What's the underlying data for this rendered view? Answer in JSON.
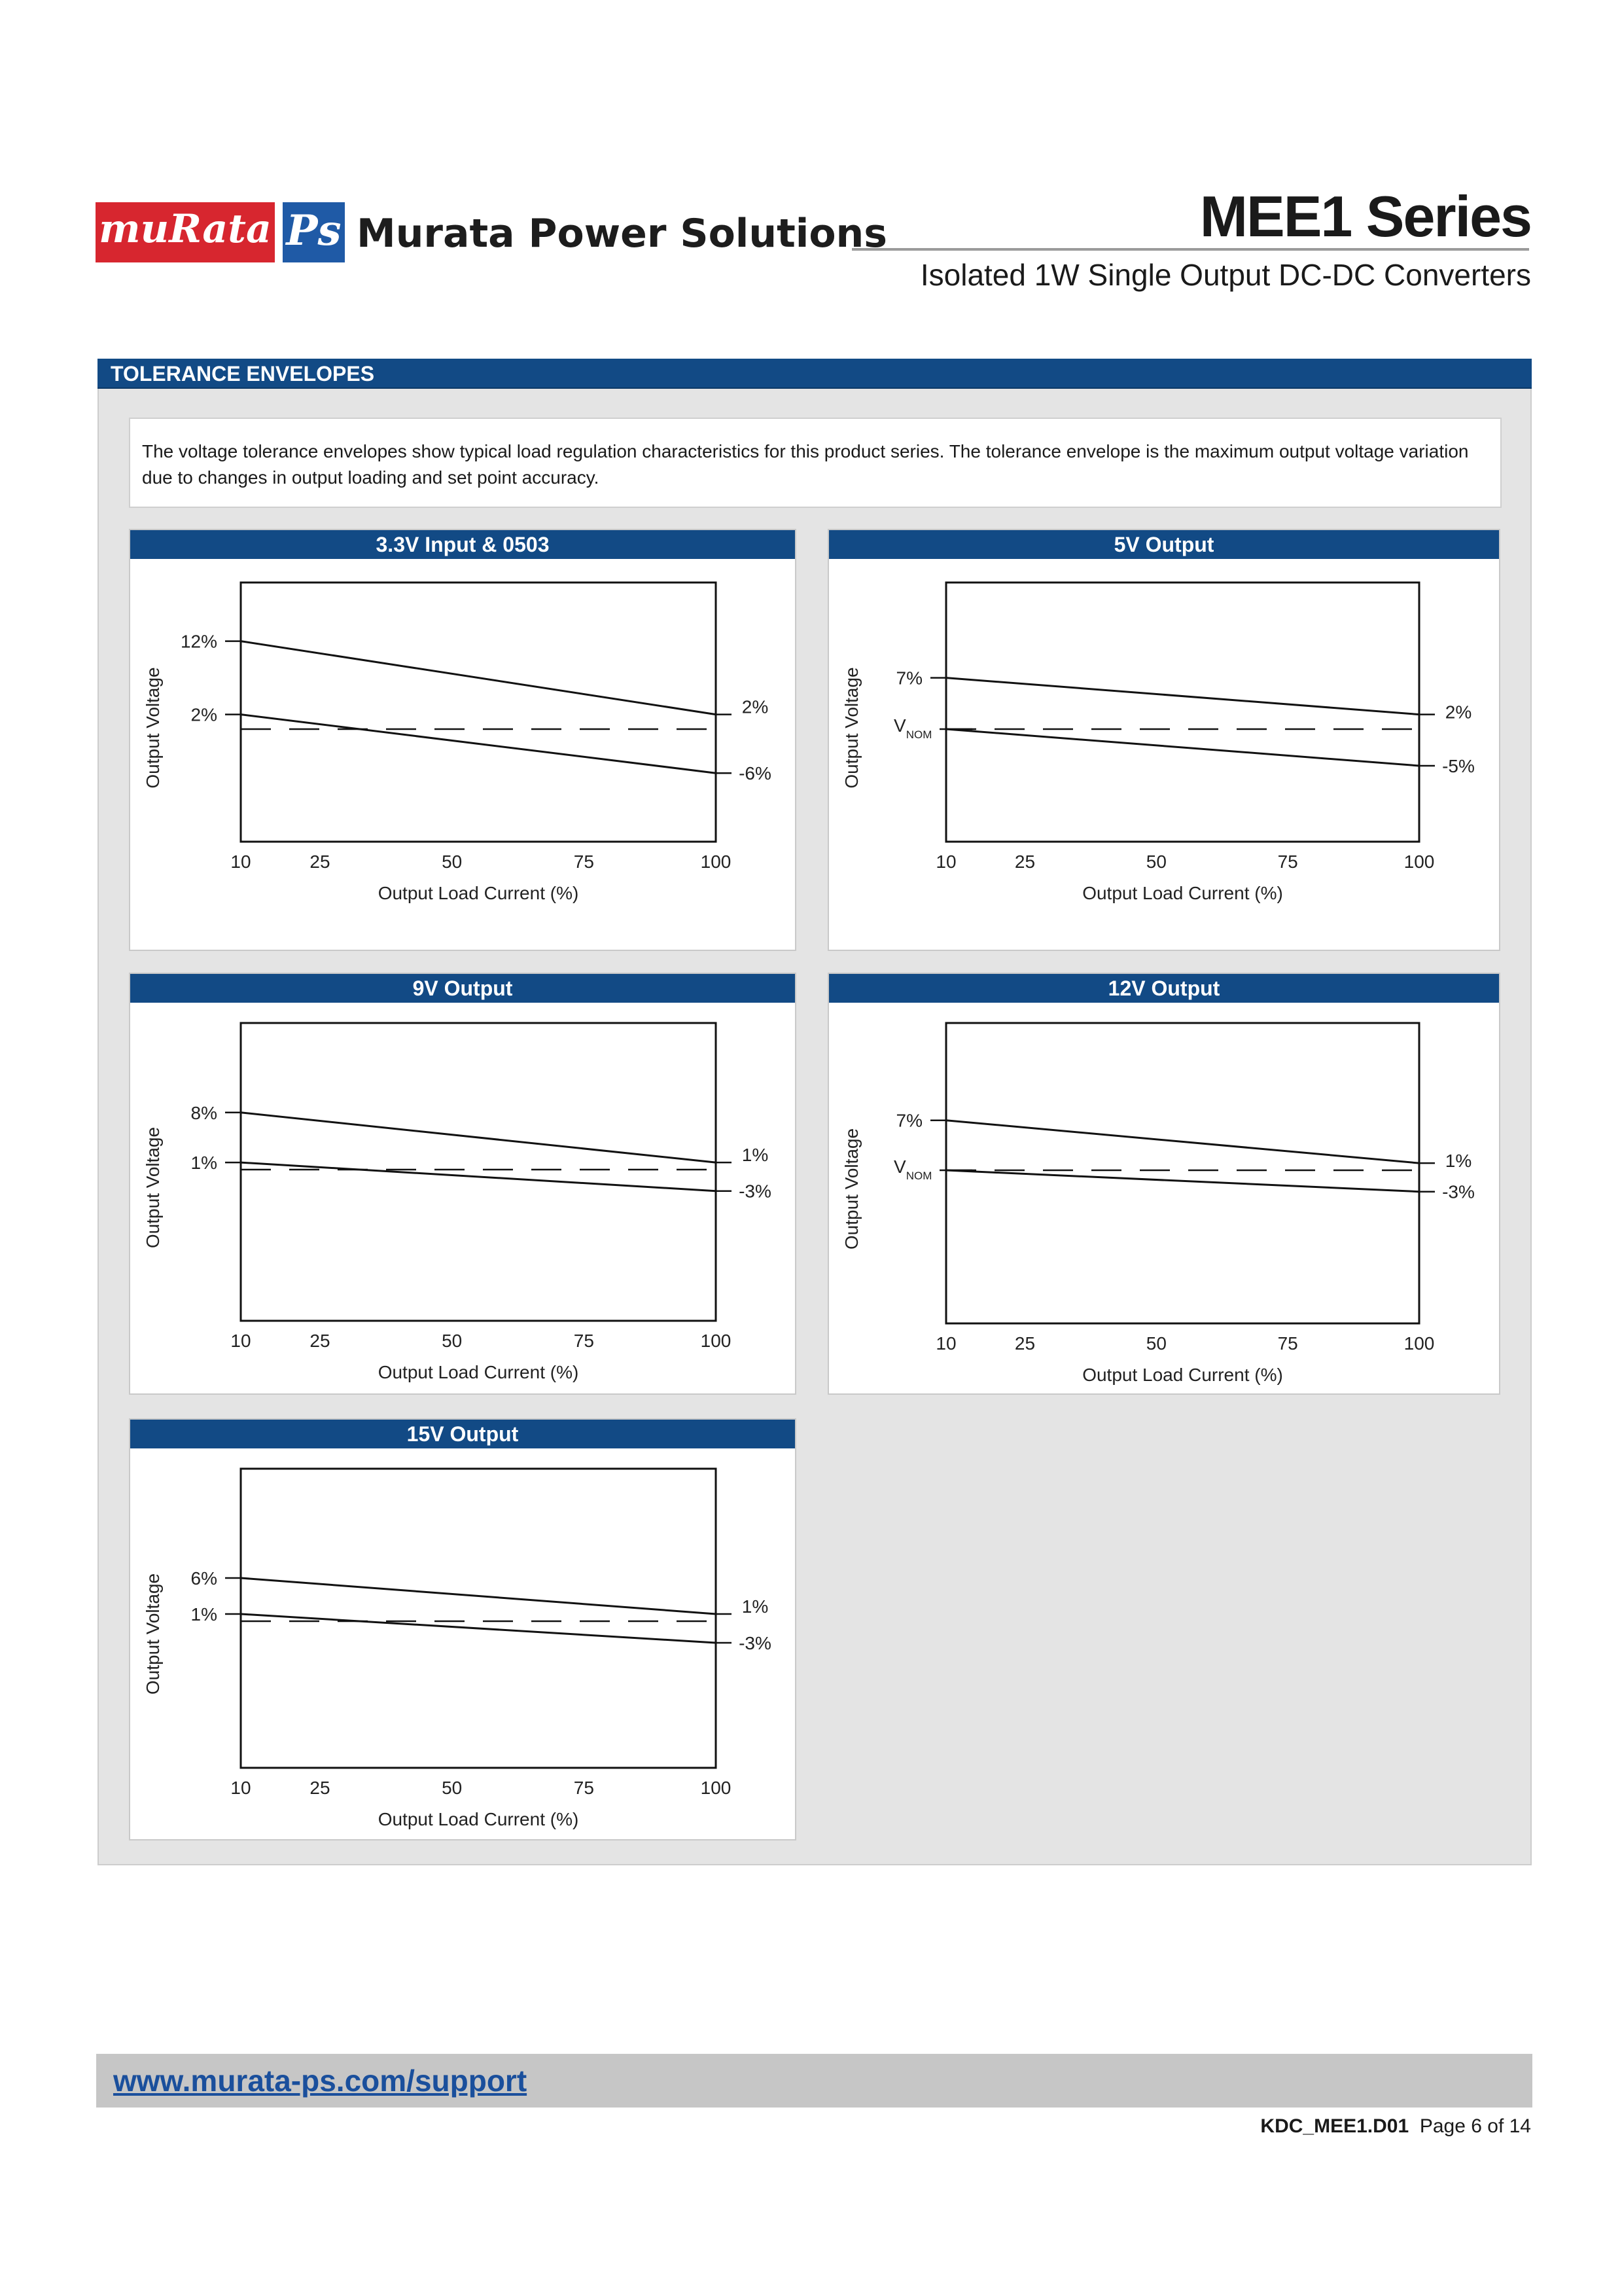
{
  "header": {
    "logo_text": "muRata",
    "ps_mark": "Ps",
    "brand_name": "Murata Power Solutions",
    "series_title": "MEE1 Series",
    "series_subtitle": "Isolated 1W Single Output DC-DC Converters"
  },
  "section": {
    "title": "TOLERANCE ENVELOPES",
    "intro": "The voltage tolerance envelopes show typical load regulation characteristics for this product series. The tolerance envelope is the maximum output voltage variation due to changes in output loading and set point accuracy."
  },
  "chart_data": [
    {
      "type": "line",
      "title": "3.3V Input & 0503",
      "xlabel": "Output Load Current (%)",
      "ylabel": "Output Voltage",
      "x_ticks": [
        "10",
        "25",
        "50",
        "75",
        "100"
      ],
      "x": [
        10,
        100
      ],
      "left_labels": [
        "12%",
        "2%"
      ],
      "right_labels": [
        "2%",
        "-6%"
      ],
      "nominal_label": "",
      "series": [
        {
          "name": "upper",
          "values": [
            12,
            2
          ]
        },
        {
          "name": "lower",
          "values": [
            2,
            -6
          ]
        },
        {
          "name": "nominal",
          "style": "dashed",
          "values": [
            0,
            0
          ]
        }
      ]
    },
    {
      "type": "line",
      "title": "5V Output",
      "xlabel": "Output Load Current (%)",
      "ylabel": "Output Voltage",
      "x_ticks": [
        "10",
        "25",
        "50",
        "75",
        "100"
      ],
      "x": [
        10,
        100
      ],
      "left_labels": [
        "7%"
      ],
      "right_labels": [
        "2%",
        "-5%"
      ],
      "nominal_label": {
        "main": "V",
        "sub": "NOM"
      },
      "series": [
        {
          "name": "upper",
          "values": [
            7,
            2
          ]
        },
        {
          "name": "lower",
          "values": [
            0,
            -5
          ]
        },
        {
          "name": "nominal",
          "style": "dashed",
          "values": [
            0,
            0
          ]
        }
      ]
    },
    {
      "type": "line",
      "title": "9V Output",
      "xlabel": "Output Load Current (%)",
      "ylabel": "Output Voltage",
      "x_ticks": [
        "10",
        "25",
        "50",
        "75",
        "100"
      ],
      "x": [
        10,
        100
      ],
      "left_labels": [
        "8%",
        "1%"
      ],
      "right_labels": [
        "1%",
        "-3%"
      ],
      "nominal_label": "",
      "series": [
        {
          "name": "upper",
          "values": [
            8,
            1
          ]
        },
        {
          "name": "lower",
          "values": [
            1,
            -3
          ]
        },
        {
          "name": "nominal",
          "style": "dashed",
          "values": [
            0,
            0
          ]
        }
      ]
    },
    {
      "type": "line",
      "title": "12V Output",
      "xlabel": "Output Load Current (%)",
      "ylabel": "Output Voltage",
      "x_ticks": [
        "10",
        "25",
        "50",
        "75",
        "100"
      ],
      "x": [
        10,
        100
      ],
      "left_labels": [
        "7%"
      ],
      "right_labels": [
        "1%",
        "-3%"
      ],
      "nominal_label": {
        "main": "V",
        "sub": "NOM"
      },
      "series": [
        {
          "name": "upper",
          "values": [
            7,
            1
          ]
        },
        {
          "name": "lower",
          "values": [
            0,
            -3
          ]
        },
        {
          "name": "nominal",
          "style": "dashed",
          "values": [
            0,
            0
          ]
        }
      ]
    },
    {
      "type": "line",
      "title": "15V Output",
      "xlabel": "Output Load Current (%)",
      "ylabel": "Output Voltage",
      "x_ticks": [
        "10",
        "25",
        "50",
        "75",
        "100"
      ],
      "x": [
        10,
        100
      ],
      "left_labels": [
        "6%",
        "1%"
      ],
      "right_labels": [
        "1%",
        "-3%"
      ],
      "nominal_label": "",
      "series": [
        {
          "name": "upper",
          "values": [
            6,
            1
          ]
        },
        {
          "name": "lower",
          "values": [
            1,
            -3
          ]
        },
        {
          "name": "nominal",
          "style": "dashed",
          "values": [
            0,
            0
          ]
        }
      ]
    }
  ],
  "footer": {
    "url": "www.murata-ps.com/support",
    "doc_code": "KDC_MEE1.D01",
    "page_label": "Page 6 of 14"
  }
}
